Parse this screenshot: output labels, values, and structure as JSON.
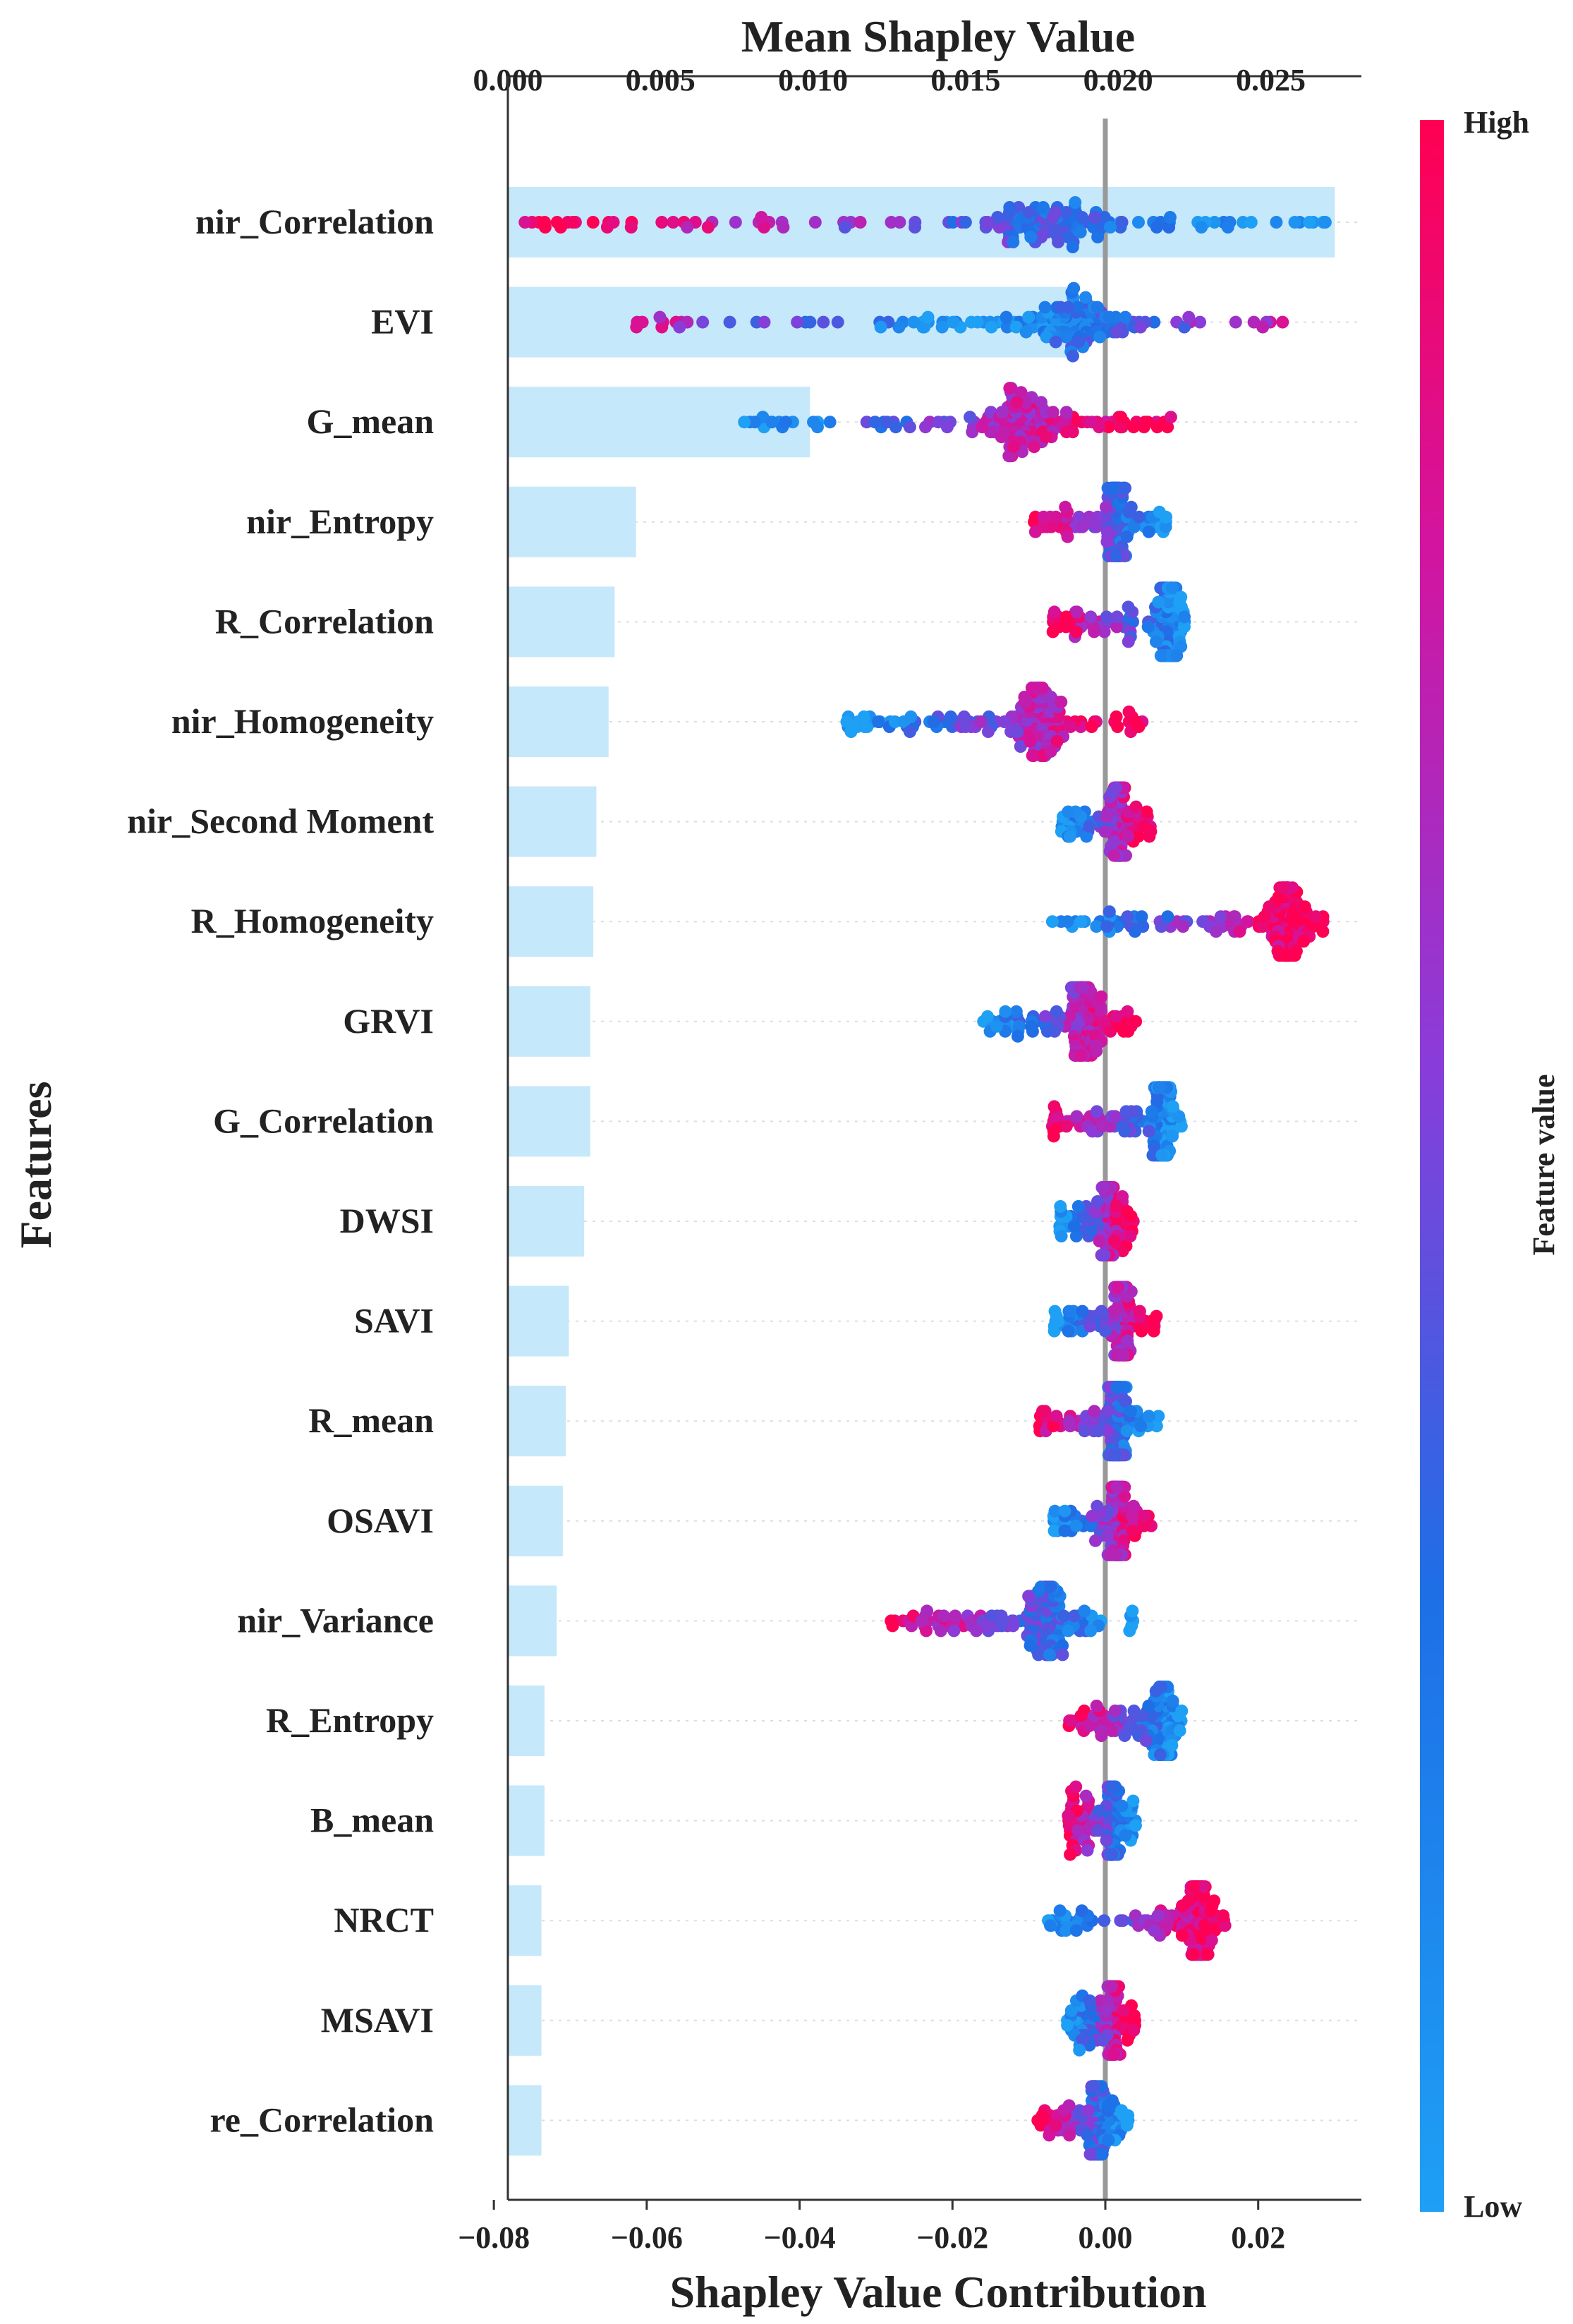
{
  "chart_data": {
    "type": "bar+beeswarm",
    "title": "Mean Shapley Value",
    "xlabel": "Shapley Value Contribution",
    "ylabel": "Features",
    "colorbar": {
      "label": "Feature value",
      "high_label": "High",
      "low_label": "Low",
      "high_color": "#ff0052",
      "mid_color": "#8a3cd9",
      "low_color": "#1e88e5"
    },
    "top_axis": {
      "range": [
        0,
        0.027
      ],
      "ticks": [
        "0.000",
        "0.005",
        "0.010",
        "0.015",
        "0.020",
        "0.025"
      ],
      "tick_values": [
        0,
        0.005,
        0.01,
        0.015,
        0.02,
        0.025
      ]
    },
    "bottom_axis": {
      "range": [
        -0.0825,
        0.0335
      ],
      "ticks": [
        "−0.08",
        "−0.06",
        "−0.04",
        "−0.02",
        "0.00",
        "0.02"
      ],
      "tick_values": [
        -0.08,
        -0.06,
        -0.04,
        -0.02,
        0,
        0.02
      ]
    },
    "bar_color": "#c6e8fb",
    "reference_line_x": 0,
    "features": [
      {
        "name": "nir_Correlation",
        "mean_shap": 0.0271,
        "min": -0.076,
        "max": 0.029,
        "low_side": "right"
      },
      {
        "name": "EVI",
        "mean_shap": 0.0187,
        "min": -0.062,
        "max": 0.026,
        "low_side": "left_mixed"
      },
      {
        "name": "G_mean",
        "mean_shap": 0.0099,
        "min": -0.048,
        "max": 0.009,
        "low_side": "left"
      },
      {
        "name": "nir_Entropy",
        "mean_shap": 0.0042,
        "min": -0.01,
        "max": 0.008,
        "low_side": "right"
      },
      {
        "name": "R_Correlation",
        "mean_shap": 0.0035,
        "min": -0.007,
        "max": 0.011,
        "low_side": "right"
      },
      {
        "name": "nir_Homogeneity",
        "mean_shap": 0.0033,
        "min": -0.034,
        "max": 0.005,
        "low_side": "left"
      },
      {
        "name": "nir_Second Moment",
        "mean_shap": 0.0029,
        "min": -0.006,
        "max": 0.006,
        "low_side": "left"
      },
      {
        "name": "R_Homogeneity",
        "mean_shap": 0.0028,
        "min": -0.007,
        "max": 0.029,
        "low_side": "left"
      },
      {
        "name": "GRVI",
        "mean_shap": 0.0027,
        "min": -0.016,
        "max": 0.004,
        "low_side": "left"
      },
      {
        "name": "G_Correlation",
        "mean_shap": 0.0027,
        "min": -0.007,
        "max": 0.01,
        "low_side": "right"
      },
      {
        "name": "DWSI",
        "mean_shap": 0.0025,
        "min": -0.006,
        "max": 0.004,
        "low_side": "left"
      },
      {
        "name": "SAVI",
        "mean_shap": 0.002,
        "min": -0.007,
        "max": 0.007,
        "low_side": "left"
      },
      {
        "name": "R_mean",
        "mean_shap": 0.0019,
        "min": -0.009,
        "max": 0.007,
        "low_side": "right"
      },
      {
        "name": "OSAVI",
        "mean_shap": 0.0018,
        "min": -0.007,
        "max": 0.006,
        "low_side": "left"
      },
      {
        "name": "nir_Variance",
        "mean_shap": 0.0016,
        "min": -0.029,
        "max": 0.004,
        "low_side": "right"
      },
      {
        "name": "R_Entropy",
        "mean_shap": 0.0012,
        "min": -0.005,
        "max": 0.01,
        "low_side": "right"
      },
      {
        "name": "B_mean",
        "mean_shap": 0.0012,
        "min": -0.005,
        "max": 0.004,
        "low_side": "right"
      },
      {
        "name": "NRCT",
        "mean_shap": 0.0011,
        "min": -0.008,
        "max": 0.016,
        "low_side": "left"
      },
      {
        "name": "MSAVI",
        "mean_shap": 0.0011,
        "min": -0.005,
        "max": 0.004,
        "low_side": "left"
      },
      {
        "name": "re_Correlation",
        "mean_shap": 0.0011,
        "min": -0.009,
        "max": 0.003,
        "low_side": "right"
      }
    ]
  }
}
